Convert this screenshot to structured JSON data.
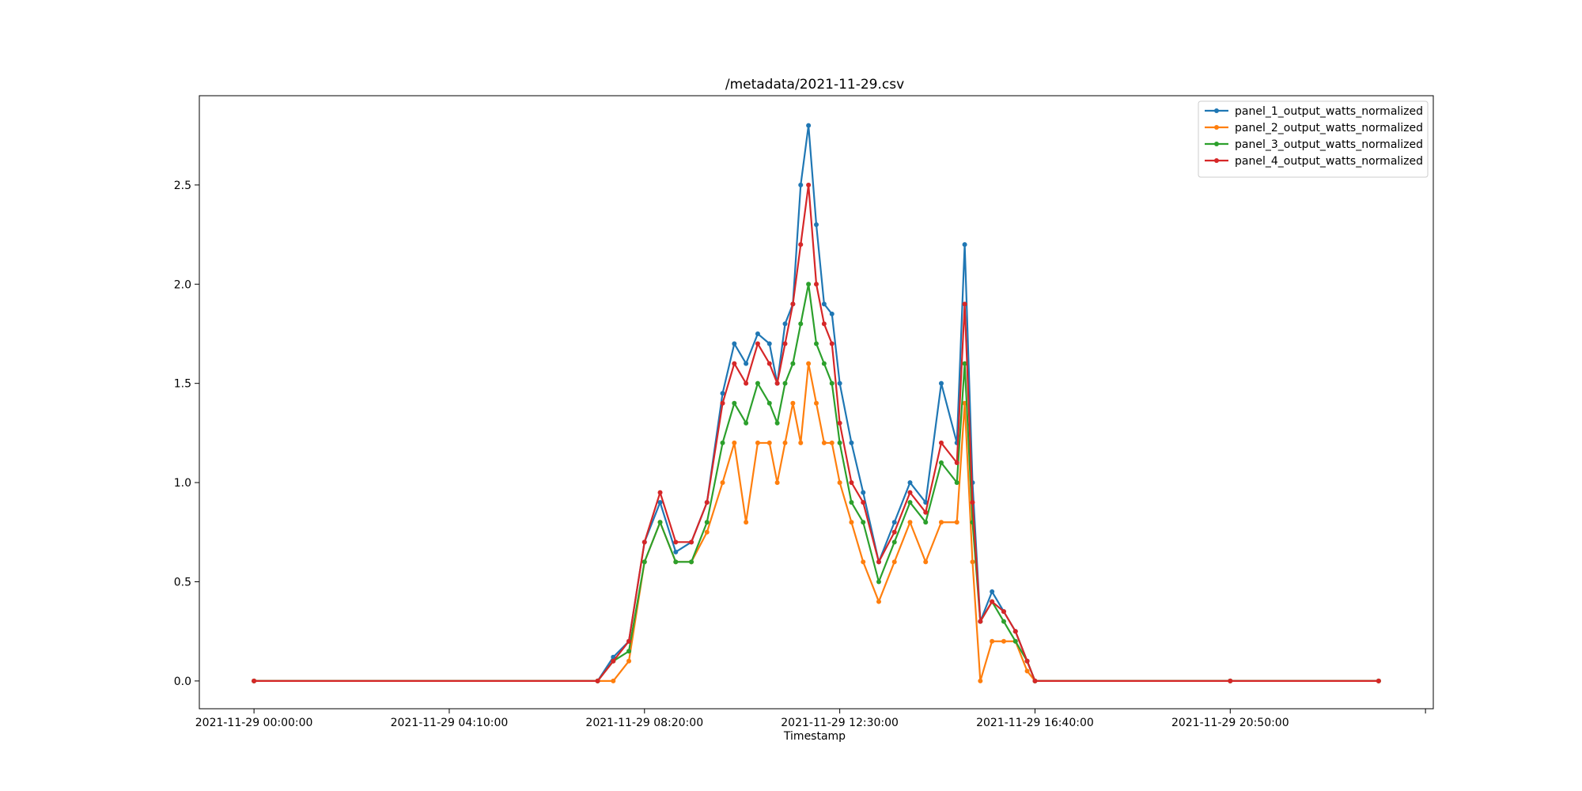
{
  "chart_data": {
    "type": "line",
    "title": "/metadata/2021-11-29.csv",
    "xlabel": "Timestamp",
    "ylabel": "",
    "x_tick_labels": [
      "2021-11-29 00:00:00",
      "2021-11-29 04:10:00",
      "2021-11-29 08:20:00",
      "2021-11-29 12:30:00",
      "2021-11-29 16:40:00",
      "2021-11-29 20:50:00"
    ],
    "y_ticks": [
      0.0,
      0.5,
      1.0,
      1.5,
      2.0,
      2.5
    ],
    "y_tick_labels": [
      "0.0",
      "0.5",
      "1.0",
      "1.5",
      "2.0",
      "2.5"
    ],
    "xlim": [
      "2021-11-28 22:50",
      "2021-11-30 01:10"
    ],
    "ylim": [
      -0.14,
      2.95
    ],
    "grid": false,
    "legend_position": "top-right",
    "x": [
      "2021-11-29 00:00",
      "2021-11-29 07:20",
      "2021-11-29 07:40",
      "2021-11-29 08:00",
      "2021-11-29 08:20",
      "2021-11-29 08:40",
      "2021-11-29 09:00",
      "2021-11-29 09:20",
      "2021-11-29 09:40",
      "2021-11-29 10:00",
      "2021-11-29 10:15",
      "2021-11-29 10:30",
      "2021-11-29 10:45",
      "2021-11-29 11:00",
      "2021-11-29 11:10",
      "2021-11-29 11:20",
      "2021-11-29 11:30",
      "2021-11-29 11:40",
      "2021-11-29 11:50",
      "2021-11-29 12:00",
      "2021-11-29 12:10",
      "2021-11-29 12:20",
      "2021-11-29 12:30",
      "2021-11-29 12:45",
      "2021-11-29 13:00",
      "2021-11-29 13:20",
      "2021-11-29 13:40",
      "2021-11-29 14:00",
      "2021-11-29 14:20",
      "2021-11-29 14:40",
      "2021-11-29 15:00",
      "2021-11-29 15:10",
      "2021-11-29 15:20",
      "2021-11-29 15:30",
      "2021-11-29 15:45",
      "2021-11-29 16:00",
      "2021-11-29 16:15",
      "2021-11-29 16:30",
      "2021-11-29 16:40",
      "2021-11-29 20:50",
      "2021-11-30 00:00"
    ],
    "series": [
      {
        "name": "panel_1_output_watts_normalized",
        "color": "#1f77b4",
        "values": [
          0,
          0,
          0.12,
          0.2,
          0.7,
          0.9,
          0.65,
          0.7,
          0.9,
          1.45,
          1.7,
          1.6,
          1.75,
          1.7,
          1.5,
          1.8,
          1.9,
          2.5,
          2.8,
          2.3,
          1.9,
          1.85,
          1.5,
          1.2,
          0.95,
          0.6,
          0.8,
          1.0,
          0.9,
          1.5,
          1.2,
          2.2,
          1.0,
          0.3,
          0.45,
          0.35,
          0.25,
          0.1,
          0,
          0,
          0
        ]
      },
      {
        "name": "panel_2_output_watts_normalized",
        "color": "#ff7f0e",
        "values": [
          0,
          0,
          0,
          0.1,
          0.6,
          0.8,
          0.6,
          0.6,
          0.75,
          1.0,
          1.2,
          0.8,
          1.2,
          1.2,
          1.0,
          1.2,
          1.4,
          1.2,
          1.6,
          1.4,
          1.2,
          1.2,
          1.0,
          0.8,
          0.6,
          0.4,
          0.6,
          0.8,
          0.6,
          0.8,
          0.8,
          1.4,
          0.6,
          0,
          0.2,
          0.2,
          0.2,
          0.05,
          0,
          0,
          0
        ]
      },
      {
        "name": "panel_3_output_watts_normalized",
        "color": "#2ca02c",
        "values": [
          0,
          0,
          0.1,
          0.15,
          0.6,
          0.8,
          0.6,
          0.6,
          0.8,
          1.2,
          1.4,
          1.3,
          1.5,
          1.4,
          1.3,
          1.5,
          1.6,
          1.8,
          2.0,
          1.7,
          1.6,
          1.5,
          1.2,
          0.9,
          0.8,
          0.5,
          0.7,
          0.9,
          0.8,
          1.1,
          1.0,
          1.6,
          0.8,
          0.3,
          0.4,
          0.3,
          0.2,
          0.1,
          0,
          0,
          0
        ]
      },
      {
        "name": "panel_4_output_watts_normalized",
        "color": "#d62728",
        "values": [
          0,
          0,
          0.1,
          0.2,
          0.7,
          0.95,
          0.7,
          0.7,
          0.9,
          1.4,
          1.6,
          1.5,
          1.7,
          1.6,
          1.5,
          1.7,
          1.9,
          2.2,
          2.5,
          2.0,
          1.8,
          1.7,
          1.3,
          1.0,
          0.9,
          0.6,
          0.75,
          0.95,
          0.85,
          1.2,
          1.1,
          1.9,
          0.9,
          0.3,
          0.4,
          0.35,
          0.25,
          0.1,
          0,
          0,
          0
        ]
      }
    ]
  }
}
